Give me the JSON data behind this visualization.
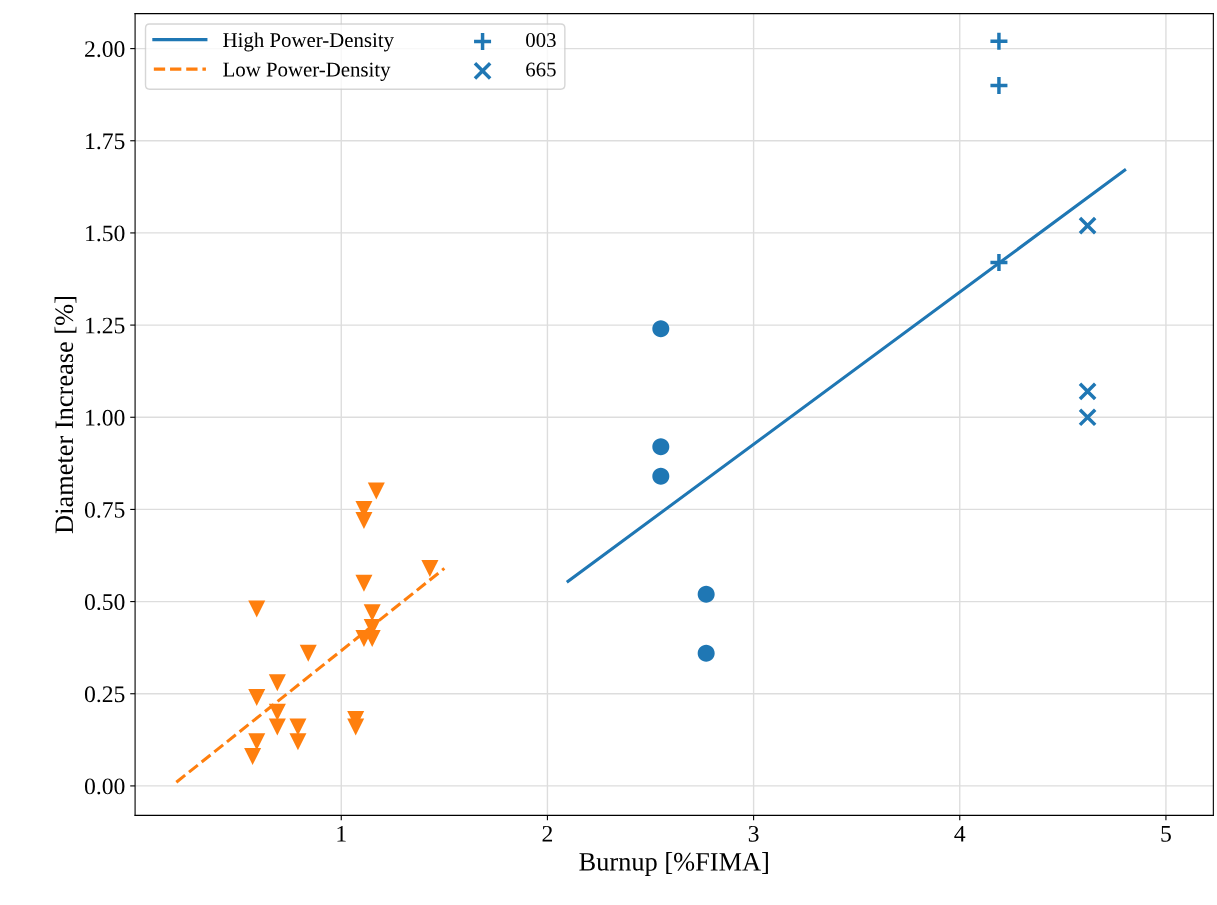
{
  "chart_data": {
    "type": "scatter",
    "xlabel": "Burnup [%FIMA]",
    "ylabel": "Diameter Increase [%]",
    "xlim": [
      0,
      5.23
    ],
    "xticks": [
      1,
      2,
      3,
      4,
      5
    ],
    "ylim": [
      -0.08,
      2.095
    ],
    "yticks": [
      {
        "value": 0,
        "label": "0.00"
      },
      {
        "value": 0.25,
        "label": "0.25"
      },
      {
        "value": 0.5,
        "label": "0.50"
      },
      {
        "value": 0.75,
        "label": "0.75"
      },
      {
        "value": 1.0,
        "label": "1.00"
      },
      {
        "value": 1.25,
        "label": "1.25"
      },
      {
        "value": 1.5,
        "label": "1.50"
      },
      {
        "value": 1.75,
        "label": "1.75"
      },
      {
        "value": 2.0,
        "label": "2.00"
      }
    ],
    "grid": true,
    "legend": "top left",
    "series": [
      {
        "name": "High Power-Density",
        "type": "line",
        "color": "#1f77b4",
        "line_style": "solid",
        "marker": "none",
        "x": [
          2.1,
          4.8
        ],
        "values": [
          0.555,
          1.67
        ]
      },
      {
        "name": "Low Power-Density",
        "type": "line",
        "color": "#ff7f0e",
        "line_style": "dashed",
        "marker": "none",
        "x": [
          0.2,
          1.5
        ],
        "values": [
          0.01,
          0.59
        ]
      },
      {
        "name": "003",
        "type": "scatter",
        "color": "#1f77b4",
        "marker": "plus",
        "x": [
          4.19,
          4.19,
          4.19
        ],
        "values": [
          2.02,
          1.9,
          1.42
        ]
      },
      {
        "name": "665",
        "type": "scatter",
        "color": "#1f77b4",
        "marker": "cross",
        "x": [
          4.62,
          4.62,
          4.62
        ],
        "values": [
          1.52,
          1.07,
          1.0
        ]
      },
      {
        "color": "#1f77b4",
        "marker": "circle",
        "x": [
          2.55,
          2.55,
          2.55,
          2.77,
          2.77
        ],
        "values": [
          1.24,
          0.92,
          0.84,
          0.52,
          0.36
        ]
      },
      {
        "color": "#ff7f0e",
        "marker": "triangle_down",
        "x": [
          0.59,
          0.59,
          0.69,
          0.69,
          0.69,
          0.59,
          0.57,
          0.79,
          0.79,
          0.84,
          1.07,
          1.07,
          1.11,
          1.11,
          1.17,
          1.11,
          1.15,
          1.15,
          1.15,
          1.11,
          1.43
        ],
        "values": [
          0.48,
          0.24,
          0.28,
          0.2,
          0.16,
          0.12,
          0.08,
          0.16,
          0.12,
          0.36,
          0.18,
          0.16,
          0.75,
          0.72,
          0.8,
          0.55,
          0.47,
          0.43,
          0.4,
          0.4,
          0.59
        ]
      }
    ]
  }
}
